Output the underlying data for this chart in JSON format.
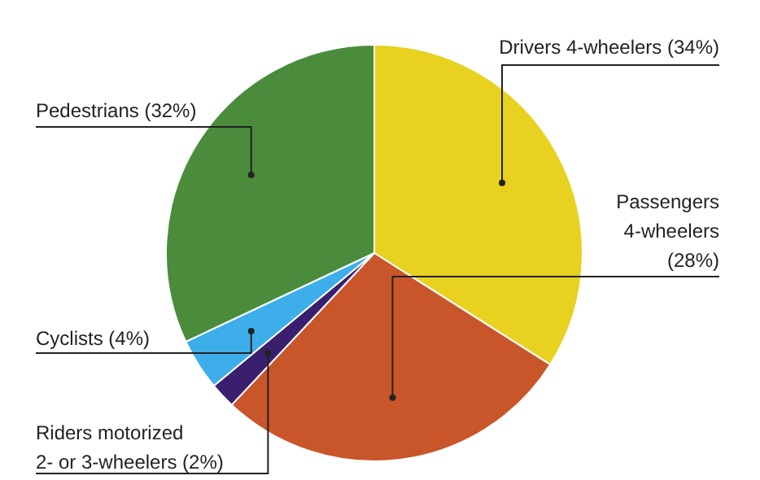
{
  "chart_data": {
    "type": "pie",
    "categories": [
      "Drivers 4-wheelers",
      "Passengers 4-wheelers",
      "Riders motorized 2- or 3-wheelers",
      "Cyclists",
      "Pedestrians"
    ],
    "values": [
      34,
      28,
      2,
      4,
      32
    ],
    "value_labels": [
      "(34%)",
      "(28%)",
      "(2%)",
      "(4%)",
      "(32%)"
    ],
    "colors": [
      "#e8d11f",
      "#c9562a",
      "#3a1f6f",
      "#3eaeea",
      "#4a8c3c"
    ],
    "legend": false
  }
}
